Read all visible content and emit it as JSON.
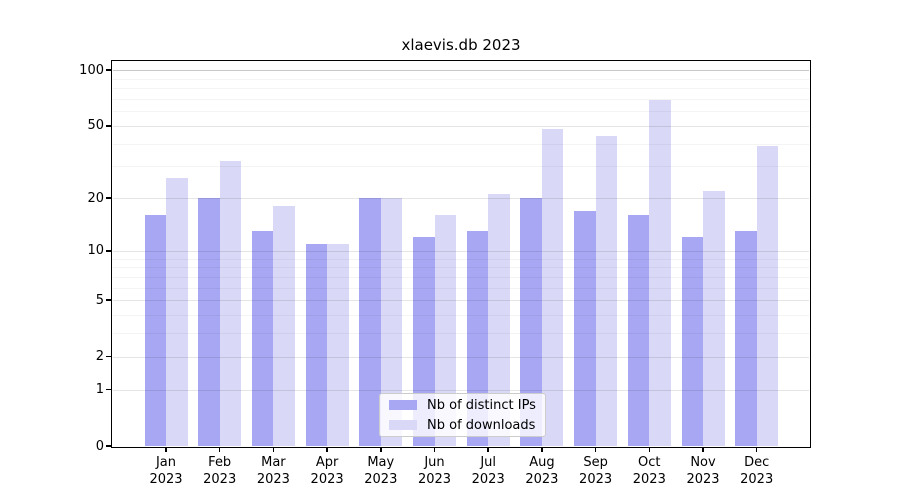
{
  "chart_data": {
    "type": "bar",
    "title": "xlaevis.db 2023",
    "x_month_labels": [
      "Jan",
      "Feb",
      "Mar",
      "Apr",
      "May",
      "Jun",
      "Jul",
      "Aug",
      "Sep",
      "Oct",
      "Nov",
      "Dec"
    ],
    "x_year_label": "2023",
    "series": [
      {
        "name": "Nb of distinct IPs",
        "color": "#a7a7f3",
        "values": [
          16,
          20,
          13,
          11,
          20,
          12,
          13,
          20,
          17,
          16,
          12,
          13
        ]
      },
      {
        "name": "Nb of downloads",
        "color": "#d9d9f7",
        "values": [
          26,
          32,
          18,
          11,
          20,
          16,
          21,
          48,
          44,
          69,
          22,
          39
        ]
      }
    ],
    "y_scale": "log10(1+v)",
    "y_ticks": [
      0,
      1,
      2,
      5,
      10,
      20,
      50,
      100
    ],
    "y_minor_gridlines": [
      3,
      4,
      6,
      7,
      8,
      9,
      30,
      40,
      60,
      70,
      80,
      90
    ],
    "ylim": [
      0,
      111
    ],
    "grid": "on",
    "legend_position": "lower center"
  },
  "colors": {
    "major_grid": "rgba(0,0,0,0.10)",
    "top_grid": "rgba(0,0,0,0.22)",
    "minor_grid": "rgba(0,0,0,0.045)",
    "spine": "#000000",
    "background": "#ffffff"
  }
}
